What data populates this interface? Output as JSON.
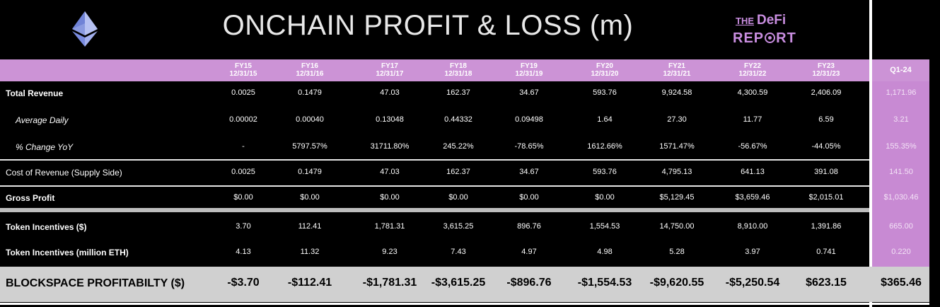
{
  "title": "ONCHAIN PROFIT & LOSS (m)",
  "brand": {
    "the": "THE",
    "defi": "DeFi",
    "report_pre": "REP",
    "report_post": "RT"
  },
  "header": {
    "columns": [
      {
        "fy": "FY15",
        "date": "12/31/15"
      },
      {
        "fy": "FY16",
        "date": "12/31/16"
      },
      {
        "fy": "FY17",
        "date": "12/31/17"
      },
      {
        "fy": "FY18",
        "date": "12/31/18"
      },
      {
        "fy": "FY19",
        "date": "12/31/19"
      },
      {
        "fy": "FY20",
        "date": "12/31/20"
      },
      {
        "fy": "FY21",
        "date": "12/31/21"
      },
      {
        "fy": "FY22",
        "date": "12/31/22"
      },
      {
        "fy": "FY23",
        "date": "12/31/23"
      }
    ],
    "quarter": "Q1-24"
  },
  "rows": [
    {
      "label": "Total Revenue",
      "values": [
        "0.0025",
        "0.1479",
        "47.03",
        "162.37",
        "34.67",
        "593.76",
        "9,924.58",
        "4,300.59",
        "2,406.09",
        "1,171.96"
      ]
    },
    {
      "label": "Average Daily",
      "values": [
        "0.00002",
        "0.00040",
        "0.13048",
        "0.44332",
        "0.09498",
        "1.64",
        "27.30",
        "11.77",
        "6.59",
        "3.21"
      ]
    },
    {
      "label": "% Change YoY",
      "values": [
        "-",
        "5797.57%",
        "31711.80%",
        "245.22%",
        "-78.65%",
        "1612.66%",
        "1571.47%",
        "-56.67%",
        "-44.05%",
        "155.35%"
      ]
    },
    {
      "label": "Cost of Revenue (Supply Side)",
      "values": [
        "0.0025",
        "0.1479",
        "47.03",
        "162.37",
        "34.67",
        "593.76",
        "4,795.13",
        "641.13",
        "391.08",
        "141.50"
      ]
    },
    {
      "label": "Gross Profit",
      "values": [
        "$0.00",
        "$0.00",
        "$0.00",
        "$0.00",
        "$0.00",
        "$0.00",
        "$5,129.45",
        "$3,659.46",
        "$2,015.01",
        "$1,030.46"
      ]
    },
    {
      "label": "Token Incentives ($)",
      "values": [
        "3.70",
        "112.41",
        "1,781.31",
        "3,615.25",
        "896.76",
        "1,554.53",
        "14,750.00",
        "8,910.00",
        "1,391.86",
        "665.00"
      ]
    },
    {
      "label": "Token Incentives (million ETH)",
      "values": [
        "4.13",
        "11.32",
        "9.23",
        "7.43",
        "4.97",
        "4.98",
        "5.28",
        "3.97",
        "0.741",
        "0.220"
      ]
    }
  ],
  "bottom": {
    "label": "BLOCKSPACE PROFITABILTY ($)",
    "values": [
      "-$3.70",
      "-$112.41",
      "-$1,781.31",
      "-$3,615.25",
      "-$896.76",
      "-$1,554.53",
      "-$9,620.55",
      "-$5,250.54",
      "$623.15",
      "$365.46"
    ]
  }
}
